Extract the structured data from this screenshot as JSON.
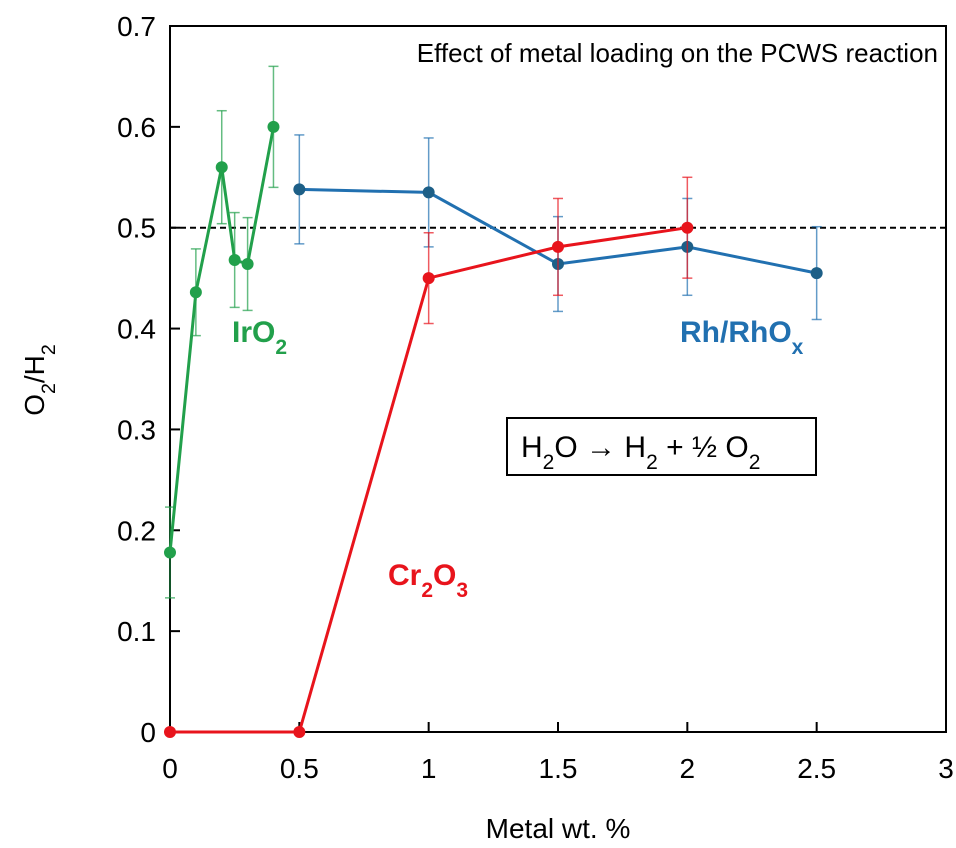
{
  "chart_data": {
    "type": "line",
    "title": "Effect of metal loading on the PCWS reaction",
    "xlabel": "Metal wt. %",
    "ylabel": "O2/H2",
    "xlim": [
      0,
      3
    ],
    "ylim": [
      0,
      0.7
    ],
    "x_ticks": [
      "0",
      "0.5",
      "1",
      "1.5",
      "2",
      "2.5",
      "3"
    ],
    "y_ticks": [
      "0",
      "0.1",
      "0.2",
      "0.3",
      "0.4",
      "0.5",
      "0.6",
      "0.7"
    ],
    "reference_line": {
      "y": 0.5,
      "style": "dashed"
    },
    "annotation": "H2O → H2 + ½ O2",
    "series": [
      {
        "name": "IrO2",
        "color": "#22A04B",
        "points": [
          {
            "x": 0,
            "y": 0.178,
            "err": 0.045
          },
          {
            "x": 0.1,
            "y": 0.436,
            "err": 0.043
          },
          {
            "x": 0.2,
            "y": 0.56,
            "err": 0.056
          },
          {
            "x": 0.25,
            "y": 0.468,
            "err": 0.047
          },
          {
            "x": 0.3,
            "y": 0.464,
            "err": 0.046
          },
          {
            "x": 0.4,
            "y": 0.6,
            "err": 0.06
          }
        ]
      },
      {
        "name": "Rh/RhOx",
        "color": "#2170B0",
        "points": [
          {
            "x": 0.5,
            "y": 0.538,
            "err": 0.054
          },
          {
            "x": 1,
            "y": 0.535,
            "err": 0.054
          },
          {
            "x": 1.5,
            "y": 0.464,
            "err": 0.047
          },
          {
            "x": 2,
            "y": 0.481,
            "err": 0.048
          },
          {
            "x": 2.5,
            "y": 0.455,
            "err": 0.046
          }
        ]
      },
      {
        "name": "Cr2O3",
        "color": "#E8141C",
        "points": [
          {
            "x": 0,
            "y": 0,
            "err": 0
          },
          {
            "x": 0.5,
            "y": 0,
            "err": 0
          },
          {
            "x": 1,
            "y": 0.45,
            "err": 0.045
          },
          {
            "x": 1.5,
            "y": 0.481,
            "err": 0.048
          },
          {
            "x": 2,
            "y": 0.5,
            "err": 0.05
          }
        ]
      }
    ]
  }
}
